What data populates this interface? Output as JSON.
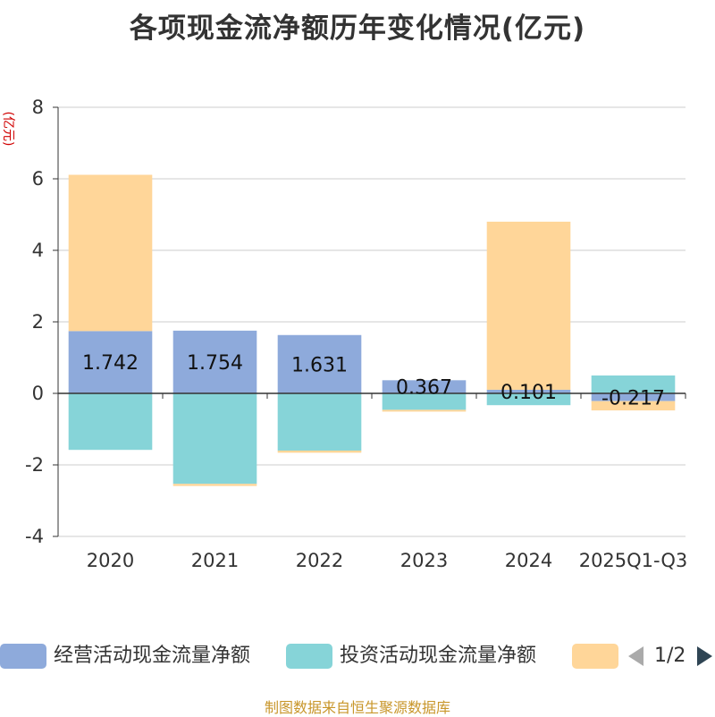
{
  "chart_data": {
    "type": "bar",
    "stacked": true,
    "title": "各项现金流净额历年变化情况(亿元)",
    "ylabel": "(亿元)",
    "xlabel": "",
    "ylim": [
      -4,
      8
    ],
    "yticks": [
      -4,
      -2,
      0,
      2,
      4,
      6,
      8
    ],
    "grid": true,
    "categories": [
      "2020",
      "2021",
      "2022",
      "2023",
      "2024",
      "2025Q1-Q3"
    ],
    "series": [
      {
        "name": "经营活动现金流量净额",
        "color": "#8eaadb",
        "values": [
          1.742,
          1.754,
          1.631,
          0.367,
          0.101,
          -0.217
        ],
        "labels": [
          "1.742",
          "1.754",
          "1.631",
          "0.367",
          "0.101",
          "-0.217"
        ]
      },
      {
        "name": "投资活动现金流量净额",
        "color": "#86d4d8",
        "values": [
          -1.58,
          -2.53,
          -1.6,
          -0.46,
          -0.33,
          0.5
        ],
        "labels": []
      },
      {
        "name": "",
        "color": "#ffd699",
        "values": [
          4.37,
          -0.06,
          -0.06,
          -0.05,
          4.7,
          -0.26
        ],
        "labels": []
      }
    ],
    "legend_position": "bottom"
  },
  "legend": {
    "page_indicator": "1/2"
  },
  "footer": "制图数据来自恒生聚源数据库"
}
